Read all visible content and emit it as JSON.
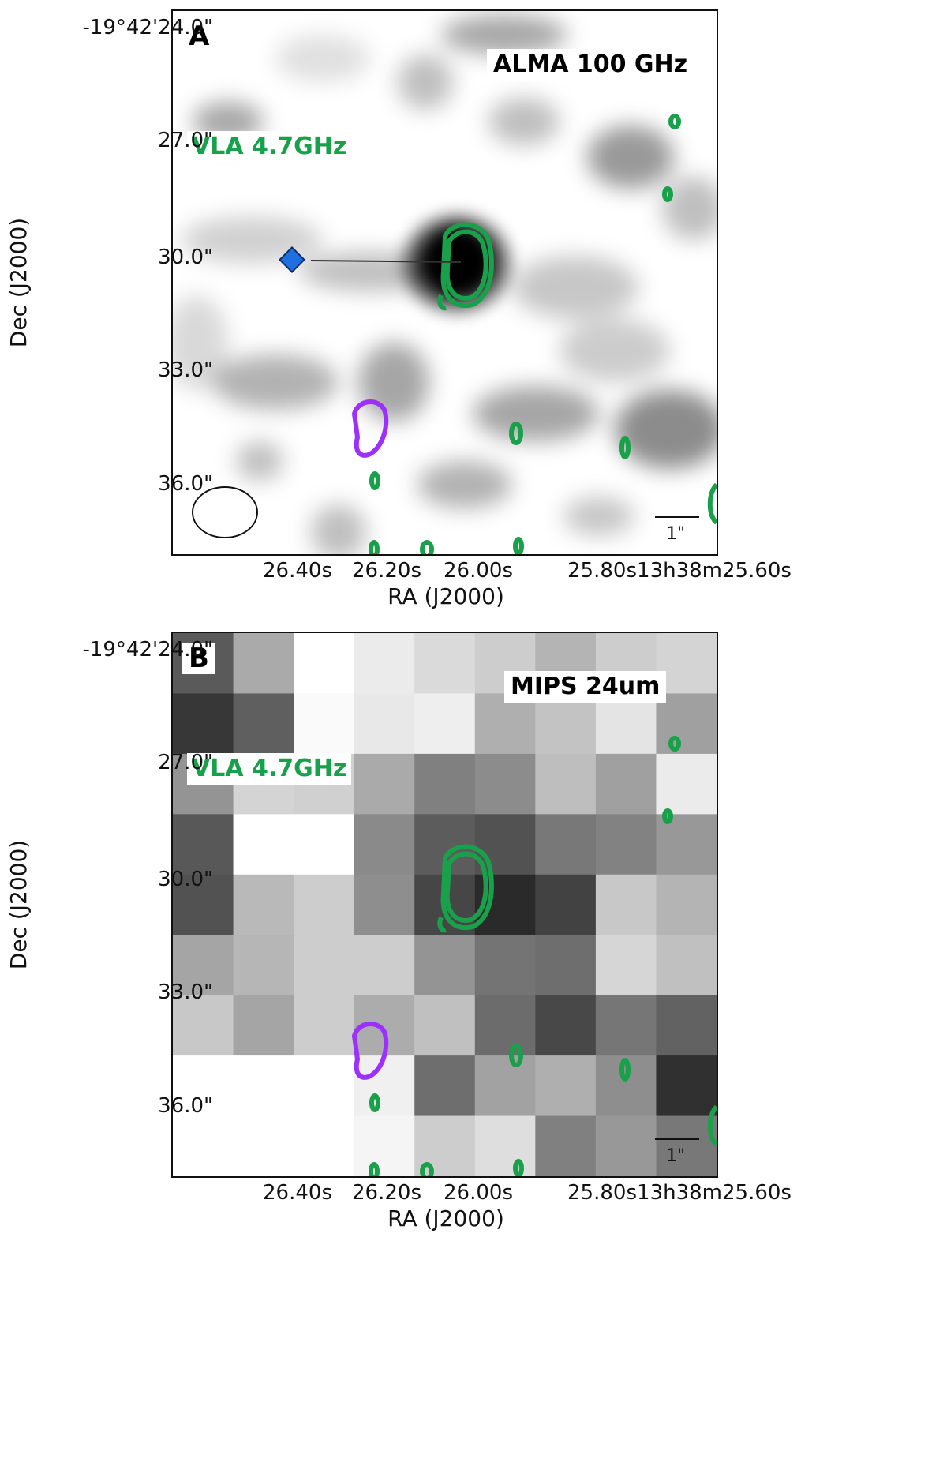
{
  "panels": [
    {
      "letter": "A",
      "band_label": "ALMA 100 GHz",
      "overlay_label": "VLA 4.7GHz",
      "scale_label": "1\"",
      "y_ticks": [
        "-19°42'24.0\"",
        "27.0\"",
        "30.0\"",
        "33.0\"",
        "36.0\""
      ],
      "x_ticks": [
        "26.40s",
        "26.20s",
        "26.00s",
        "25.80s",
        "13h38m25.60s"
      ],
      "xlabel": "RA (J2000)",
      "ylabel": "Dec (J2000)"
    },
    {
      "letter": "B",
      "band_label": "MIPS 24um",
      "overlay_label": "VLA 4.7GHz",
      "scale_label": "1\"",
      "y_ticks": [
        "-19°42'24.0\"",
        "27.0\"",
        "30.0\"",
        "33.0\"",
        "36.0\""
      ],
      "x_ticks": [
        "26.40s",
        "26.20s",
        "26.00s",
        "25.80s",
        "13h38m25.60s"
      ],
      "xlabel": "RA (J2000)",
      "ylabel": "Dec (J2000)"
    }
  ],
  "colors": {
    "vla_contour": "#19a04b",
    "purple_contour": "#9b30ff",
    "marker": "#1f6fe0"
  },
  "mips_grid": [
    [
      90,
      170,
      255,
      235,
      218,
      205,
      180,
      205,
      212
    ],
    [
      55,
      95,
      250,
      232,
      238,
      175,
      195,
      228,
      160
    ],
    [
      148,
      212,
      208,
      170,
      128,
      140,
      190,
      160,
      235
    ],
    [
      88,
      255,
      255,
      138,
      92,
      82,
      120,
      130,
      152
    ],
    [
      82,
      185,
      205,
      142,
      70,
      42,
      66,
      200,
      180
    ],
    [
      165,
      182,
      205,
      205,
      148,
      116,
      110,
      214,
      192
    ],
    [
      200,
      165,
      205,
      172,
      192,
      108,
      72,
      118,
      98
    ],
    [
      255,
      255,
      255,
      240,
      110,
      162,
      175,
      142,
      48
    ],
    [
      255,
      255,
      255,
      245,
      205,
      222,
      128,
      152,
      120
    ]
  ]
}
